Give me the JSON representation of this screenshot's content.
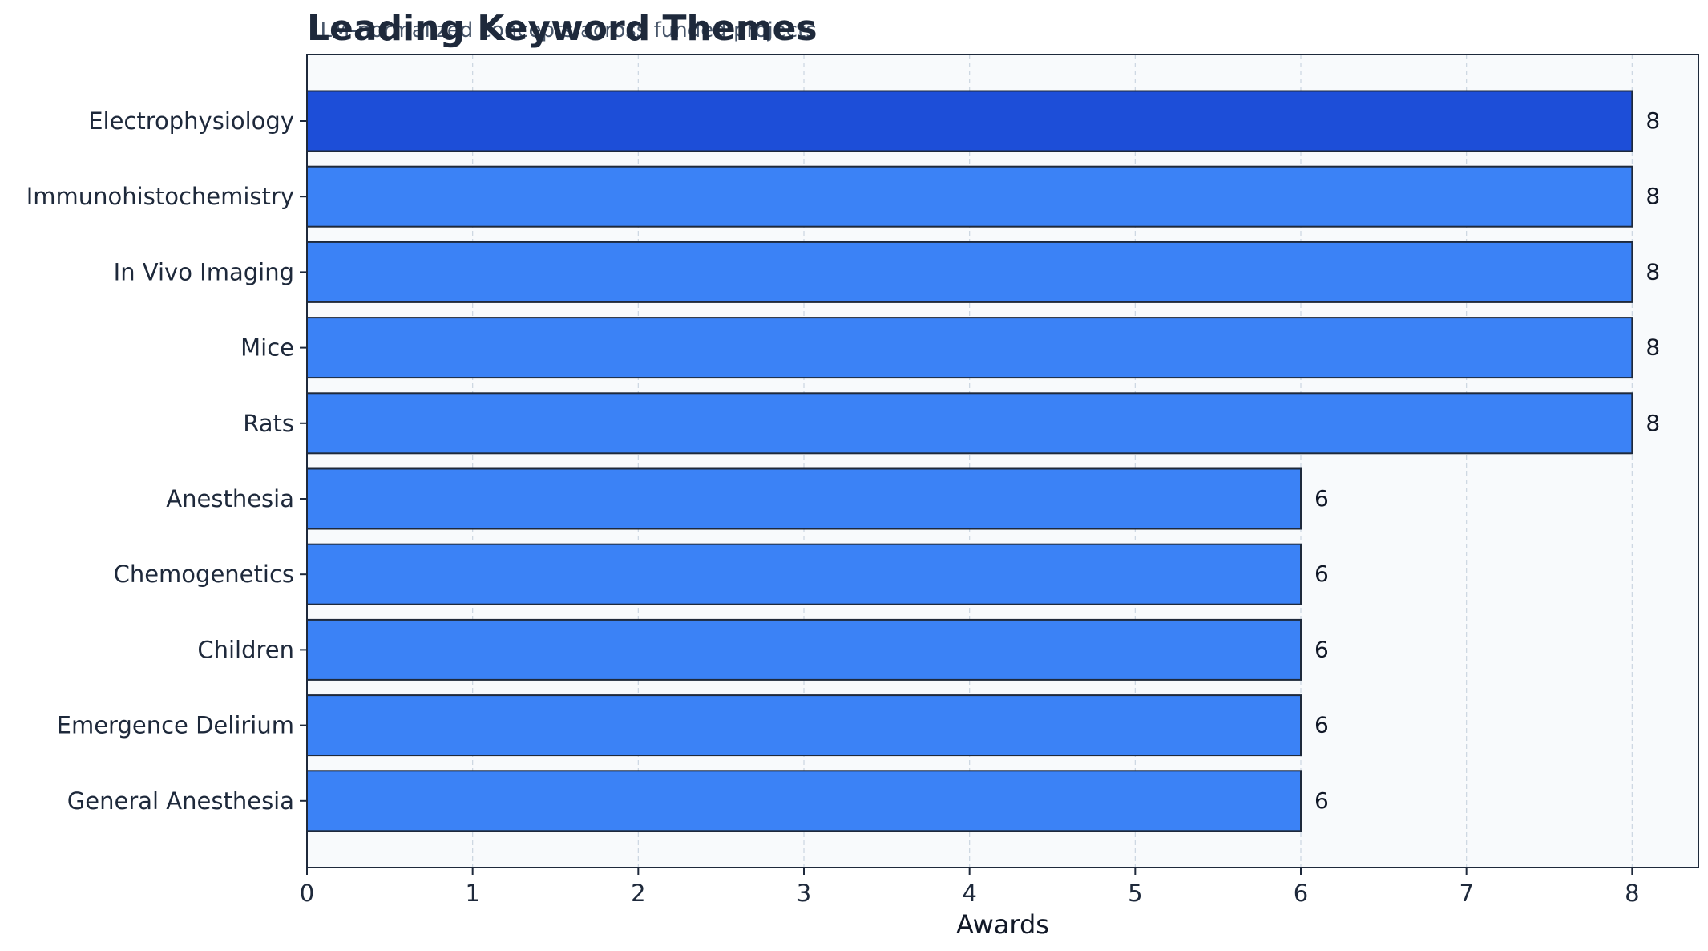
{
  "chart_data": {
    "type": "bar",
    "orientation": "horizontal",
    "title": "Leading Keyword Themes",
    "subtitle": "LLM-normalized concepts across funded projects",
    "xlabel": "Awards",
    "ylabel": "",
    "xlim": [
      0,
      8.4
    ],
    "xticks": [
      0,
      1,
      2,
      3,
      4,
      5,
      6,
      7,
      8
    ],
    "grid": true,
    "categories": [
      "Electrophysiology",
      "Immunohistochemistry",
      "In Vivo Imaging",
      "Mice",
      "Rats",
      "Anesthesia",
      "Chemogenetics",
      "Children",
      "Emergence Delirium",
      "General Anesthesia"
    ],
    "values": [
      8,
      8,
      8,
      8,
      8,
      6,
      6,
      6,
      6,
      6
    ],
    "colors": {
      "highlight": "#1d4ed8",
      "bar": "#3b82f6",
      "edge": "#1e293b",
      "plot_background": "#f8fafc",
      "grid": "#cbd5e1"
    }
  }
}
